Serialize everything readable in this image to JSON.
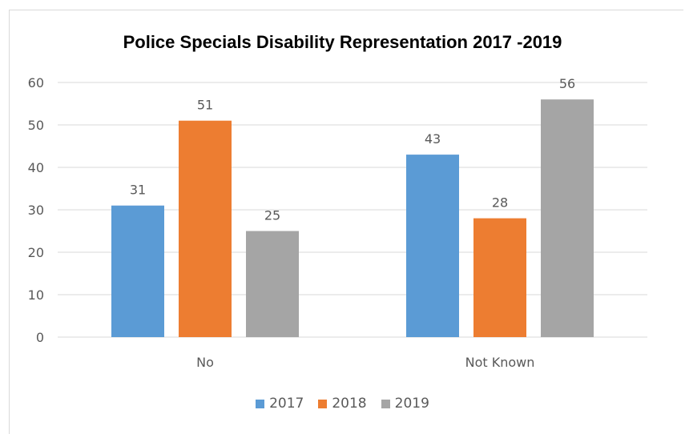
{
  "chart_data": {
    "type": "bar",
    "title": "Police Specials Disability Representation 2017 -2019",
    "categories": [
      "No",
      "Not Known"
    ],
    "series": [
      {
        "name": "2017",
        "values": [
          31,
          43
        ],
        "color": "#5b9bd5"
      },
      {
        "name": "2018",
        "values": [
          51,
          28
        ],
        "color": "#ed7d31"
      },
      {
        "name": "2019",
        "values": [
          25,
          56
        ],
        "color": "#a5a5a5"
      }
    ],
    "ylim": [
      0,
      60
    ],
    "yticks": [
      0,
      10,
      20,
      30,
      40,
      50,
      60
    ],
    "grid": true,
    "legend_position": "bottom"
  }
}
